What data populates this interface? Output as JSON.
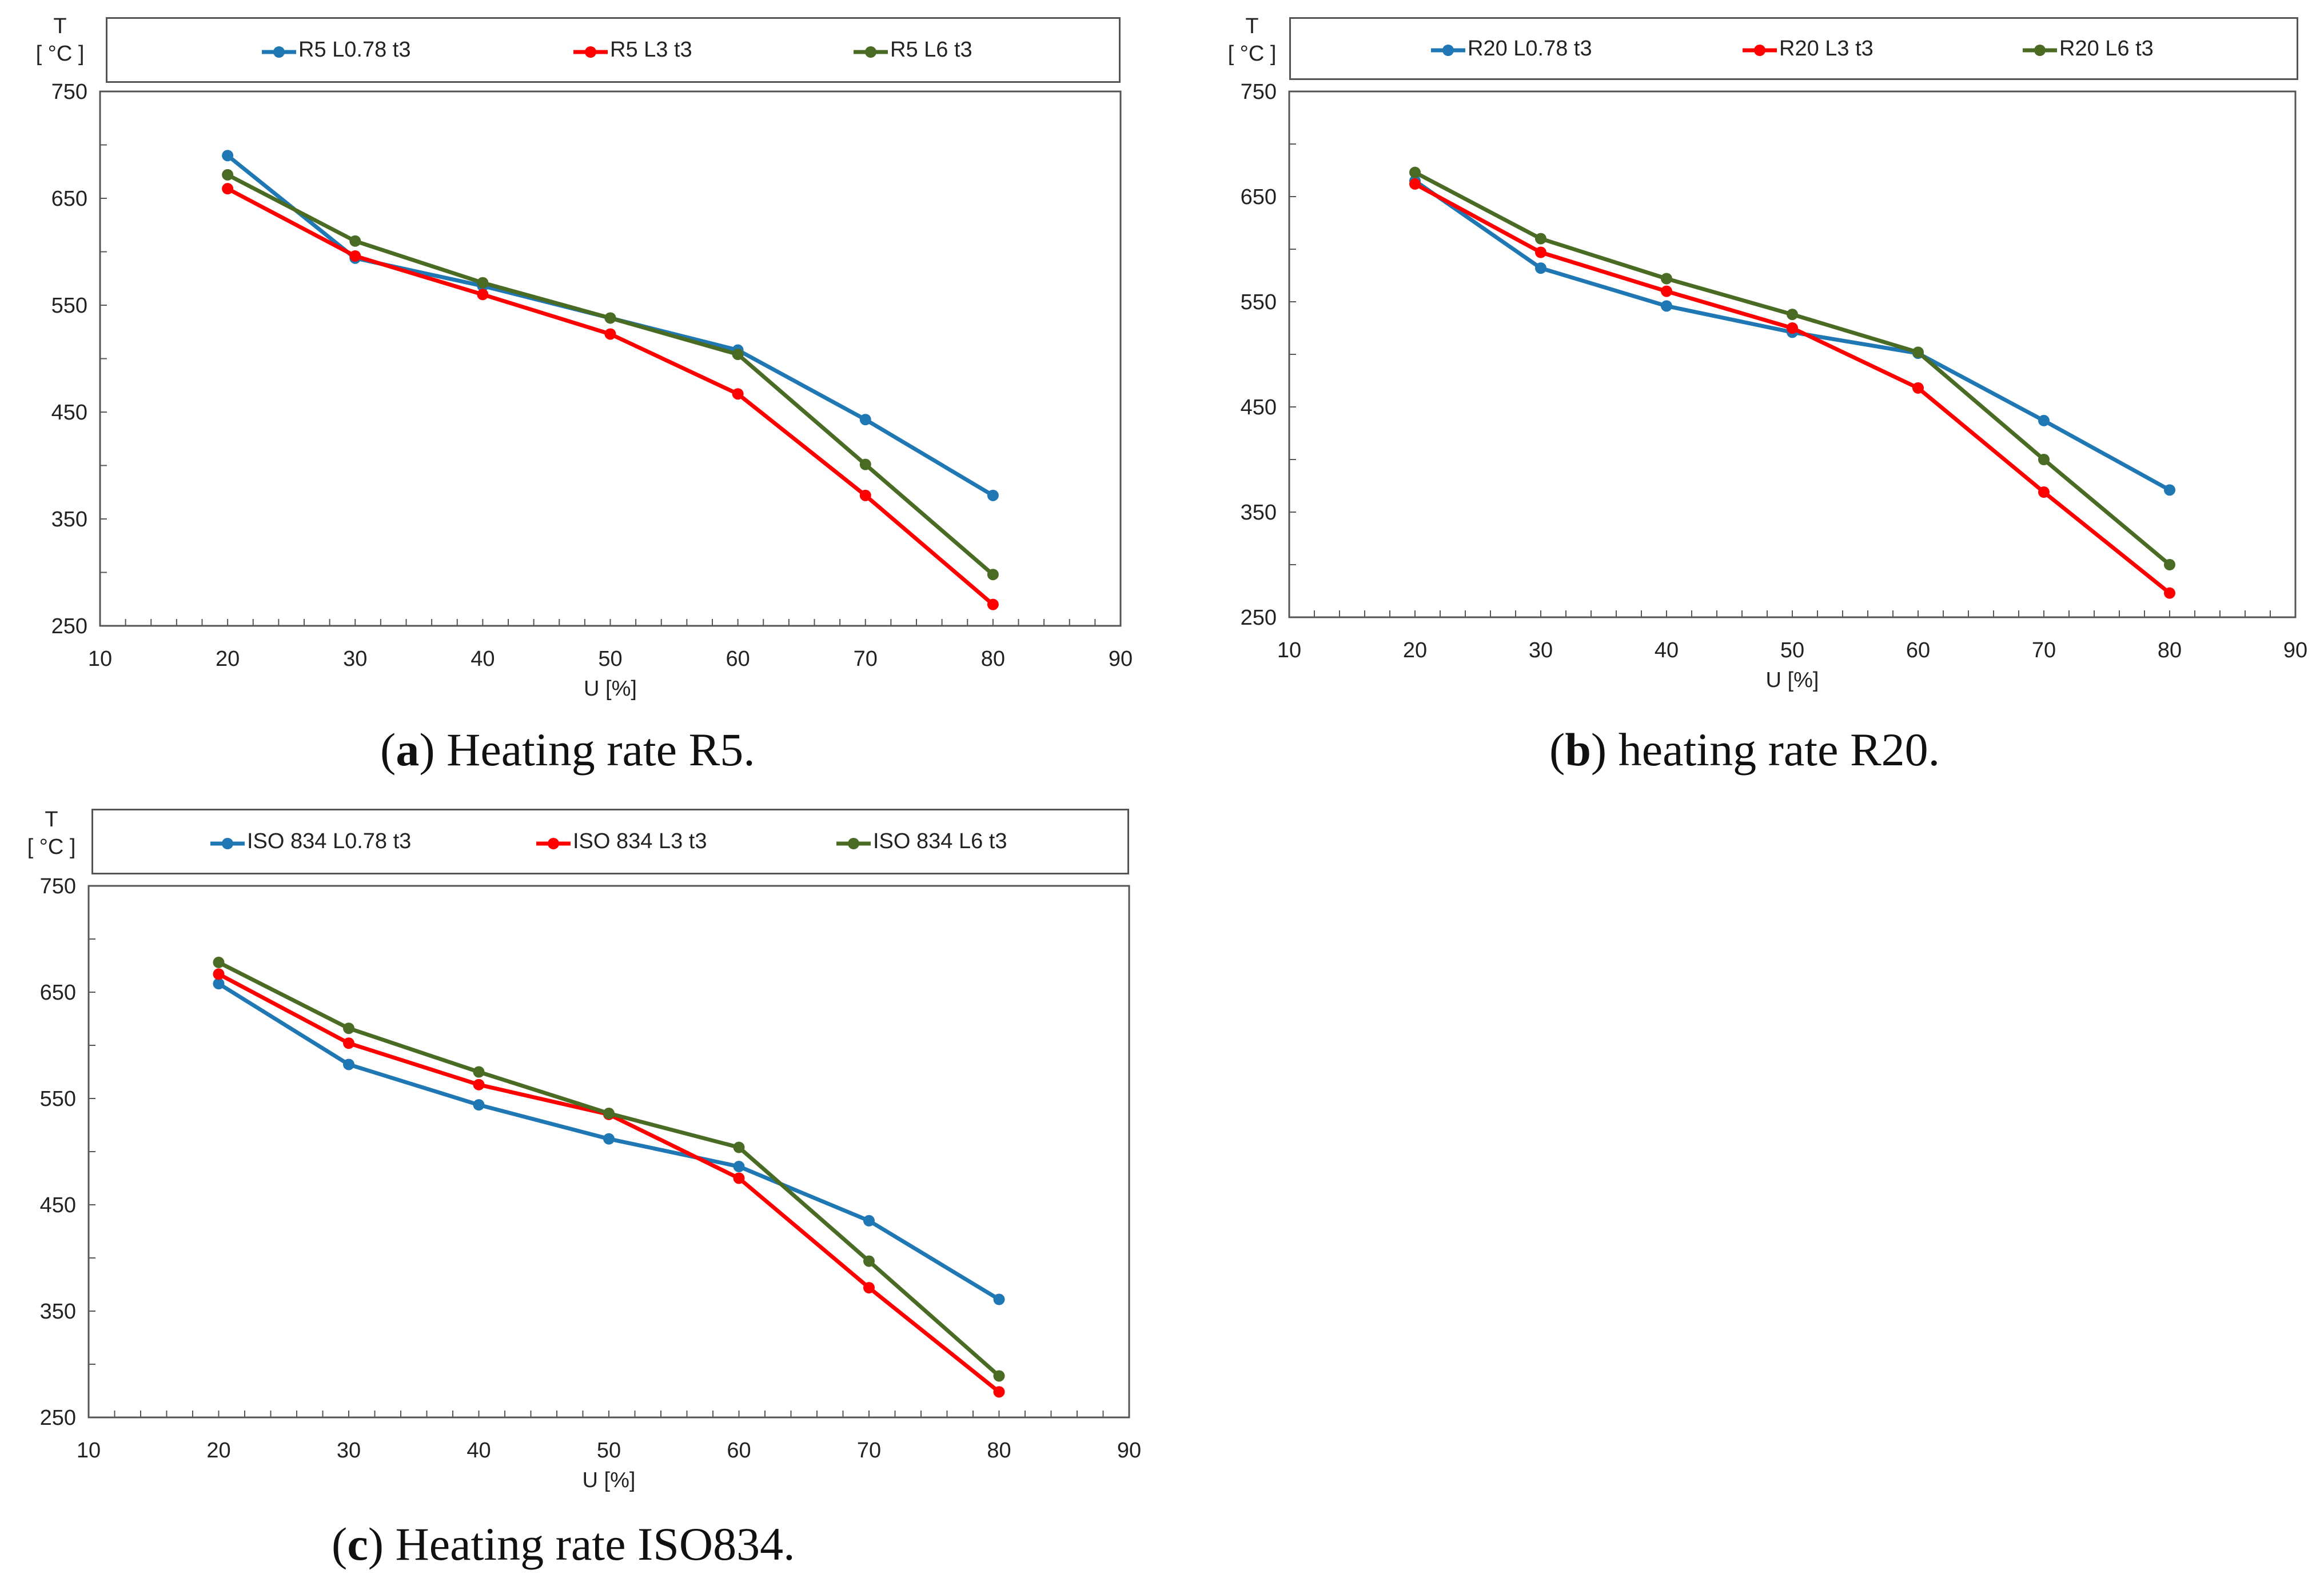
{
  "figures": [
    {
      "id": "a",
      "y_label": "T",
      "y_unit": "[ °C ]",
      "caption_letter": "a",
      "caption_text": "Heating rate R5.",
      "legend": [
        "R5 L0.78 t3",
        "R5 L3 t3",
        "R5 L6 t3"
      ]
    },
    {
      "id": "b",
      "y_label": "T",
      "y_unit": "[ °C ]",
      "caption_letter": "b",
      "caption_text": "heating rate R20.",
      "legend": [
        "R20 L0.78 t3",
        "R20 L3 t3",
        "R20 L6 t3"
      ]
    },
    {
      "id": "c",
      "y_label": "T",
      "y_unit": "[ °C ]",
      "caption_letter": "c",
      "caption_text": "Heating rate ISO834.",
      "legend": [
        "ISO 834 L0.78 t3",
        "ISO 834 L3 t3",
        "ISO 834 L6 t3"
      ]
    }
  ],
  "chart_data": [
    {
      "type": "line",
      "title": "",
      "xlabel": "U [%]",
      "ylabel": "T [ °C ]",
      "xlim": [
        10,
        90
      ],
      "ylim": [
        250,
        750
      ],
      "xticks": [
        10,
        20,
        30,
        40,
        50,
        60,
        70,
        80,
        90
      ],
      "yticks": [
        250,
        350,
        450,
        550,
        650,
        750
      ],
      "x": [
        20,
        30,
        40,
        50,
        60,
        70,
        80
      ],
      "series": [
        {
          "name": "R5 L0.78 t3",
          "color": "#1f77b4",
          "values": [
            690,
            594,
            568,
            538,
            508,
            443,
            372
          ]
        },
        {
          "name": "R5 L3 t3",
          "color": "#ff0000",
          "values": [
            659,
            596,
            560,
            523,
            467,
            372,
            270
          ]
        },
        {
          "name": "R5 L6 t3",
          "color": "#4a6b24",
          "values": [
            672,
            610,
            571,
            538,
            504,
            401,
            298
          ]
        }
      ],
      "grid": false,
      "legend_position": "top"
    },
    {
      "type": "line",
      "title": "",
      "xlabel": "U [%]",
      "ylabel": "T [ °C ]",
      "xlim": [
        10,
        90
      ],
      "ylim": [
        250,
        750
      ],
      "xticks": [
        10,
        20,
        30,
        40,
        50,
        60,
        70,
        80,
        90
      ],
      "yticks": [
        250,
        350,
        450,
        550,
        650,
        750
      ],
      "x": [
        20,
        30,
        40,
        50,
        60,
        70,
        80
      ],
      "series": [
        {
          "name": "R20 L0.78 t3",
          "color": "#1f77b4",
          "values": [
            665,
            582,
            546,
            521,
            501,
            437,
            371
          ]
        },
        {
          "name": "R20 L3 t3",
          "color": "#ff0000",
          "values": [
            662,
            597,
            560,
            525,
            468,
            369,
            273
          ]
        },
        {
          "name": "R20 L6 t3",
          "color": "#4a6b24",
          "values": [
            673,
            610,
            572,
            538,
            502,
            400,
            300
          ]
        }
      ],
      "grid": false,
      "legend_position": "top"
    },
    {
      "type": "line",
      "title": "",
      "xlabel": "U [%]",
      "ylabel": "T [ °C ]",
      "xlim": [
        10,
        90
      ],
      "ylim": [
        250,
        750
      ],
      "xticks": [
        10,
        20,
        30,
        40,
        50,
        60,
        70,
        80,
        90
      ],
      "yticks": [
        250,
        350,
        450,
        550,
        650,
        750
      ],
      "x": [
        20,
        30,
        40,
        50,
        60,
        70,
        80
      ],
      "series": [
        {
          "name": "ISO 834 L0.78 t3",
          "color": "#1f77b4",
          "values": [
            658,
            582,
            544,
            512,
            486,
            435,
            361
          ]
        },
        {
          "name": "ISO 834 L3 t3",
          "color": "#ff0000",
          "values": [
            667,
            602,
            563,
            535,
            475,
            372,
            274
          ]
        },
        {
          "name": "ISO 834 L6 t3",
          "color": "#4a6b24",
          "values": [
            678,
            616,
            575,
            536,
            504,
            397,
            289
          ]
        }
      ],
      "grid": false,
      "legend_position": "top"
    }
  ]
}
